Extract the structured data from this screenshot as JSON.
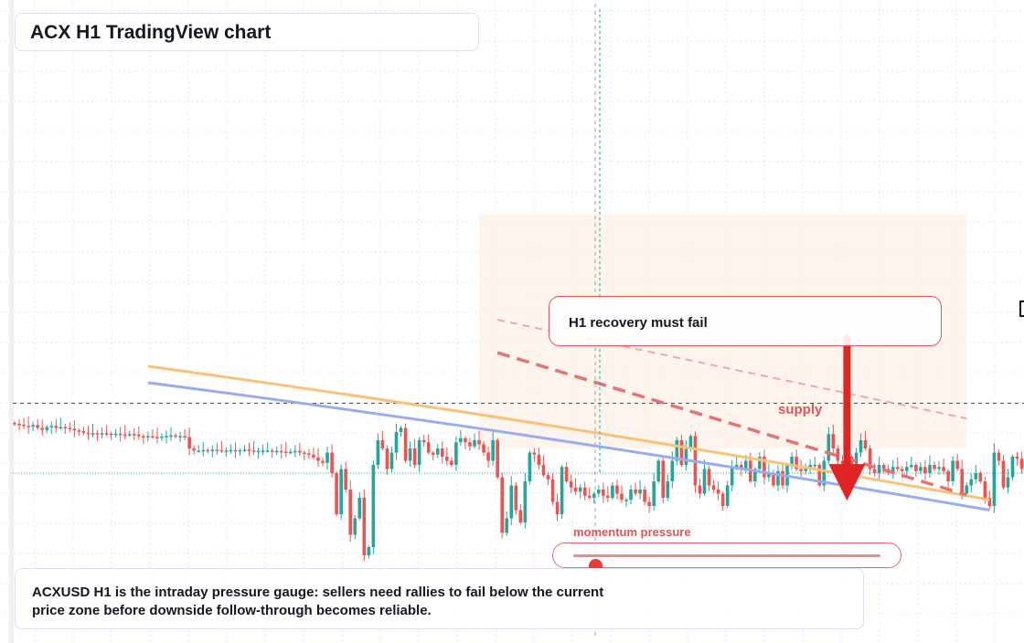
{
  "title": "ACX H1 TradingView chart",
  "callout": "H1 recovery must fail",
  "supply_label": "supply",
  "momentum": {
    "label": "momentum pressure",
    "level": 0.07
  },
  "caption": "ACXUSD H1 is the intraday pressure gauge: sellers need rallies to fail below the current price zone before downside follow-through becomes reliable.",
  "colors": {
    "up": "#26a69a",
    "down": "#ef5350",
    "orange_line": "#f7c37a",
    "blue_line": "#98adf0",
    "dashed_red": "#e57373",
    "dashed_pink": "#f2a7a7",
    "arrow": "#e02424",
    "grid": "#e3e8ef",
    "supply_zone": "#fdf1e8"
  },
  "chart_data": {
    "type": "candlestick",
    "timeframe": "H1",
    "symbol": "ACXUSD",
    "x": "bar index (1h)",
    "y": "price (axis not printed)",
    "reference_lines": {
      "current_price": 0.0,
      "previous_level": 1.7
    },
    "indicators": [
      {
        "type": "moving_average",
        "color": "orange",
        "from_bar": 29,
        "from": 2.6,
        "to_bar": 212,
        "to": -0.65
      },
      {
        "type": "moving_average",
        "color": "blue",
        "from_bar": 29,
        "from": 2.2,
        "to_bar": 212,
        "to": -0.9
      }
    ],
    "channel": [
      {
        "style": "dashed",
        "from_bar": 105,
        "from": 3.73,
        "to_bar": 207,
        "to": 1.33
      },
      {
        "style": "dashed-bold",
        "from_bar": 105,
        "from": 2.93,
        "to_bar": 207,
        "to": -0.53
      }
    ],
    "arrow": {
      "bar": 181,
      "from": 3.27,
      "to": -0.67
    },
    "closes": [
      1.2,
      1.18,
      1.15,
      1.13,
      1.17,
      1.1,
      1.05,
      1.12,
      1.15,
      1.1,
      1.12,
      1.1,
      1.08,
      1.04,
      1.02,
      0.98,
      0.95,
      0.97,
      0.96,
      0.97,
      0.96,
      0.95,
      0.96,
      0.94,
      0.93,
      0.95,
      0.94,
      0.9,
      0.88,
      0.9,
      0.88,
      0.86,
      0.89,
      0.9,
      0.92,
      0.89,
      0.9,
      0.88,
      0.6,
      0.55,
      0.55,
      0.56,
      0.55,
      0.57,
      0.56,
      0.54,
      0.55,
      0.56,
      0.53,
      0.56,
      0.57,
      0.55,
      0.52,
      0.54,
      0.55,
      0.55,
      0.52,
      0.54,
      0.52,
      0.5,
      0.52,
      0.54,
      0.5,
      0.48,
      0.45,
      0.38,
      0.3,
      0.25,
      0.5,
      0.0,
      -1.0,
      0.1,
      -0.4,
      -1.5,
      -1.1,
      -0.6,
      -2.0,
      -1.8,
      0.2,
      0.8,
      0.6,
      0.1,
      0.5,
      1.0,
      1.1,
      0.3,
      0.6,
      0.2,
      0.8,
      0.75,
      0.5,
      0.45,
      0.6,
      0.4,
      0.3,
      0.2,
      0.75,
      0.85,
      0.75,
      0.65,
      0.8,
      0.7,
      0.5,
      0.3,
      0.8,
      -0.1,
      -1.45,
      -1.1,
      -0.3,
      -0.9,
      -1.2,
      -0.2,
      0.5,
      0.45,
      0.2,
      -0.05,
      -0.15,
      -0.7,
      -1.0,
      0.15,
      -0.2,
      -0.35,
      -0.45,
      -0.35,
      -0.55,
      -0.6,
      -0.5,
      -0.4,
      -0.55,
      -0.6,
      -0.3,
      -0.5,
      -0.65,
      -0.65,
      -0.4,
      -0.5,
      -0.4,
      -0.7,
      -0.8,
      -0.2,
      0.3,
      -0.6,
      -0.2,
      0.3,
      0.8,
      0.2,
      0.6,
      0.9,
      -0.3,
      -0.5,
      0.1,
      -0.3,
      -0.4,
      -0.5,
      -0.8,
      -0.3,
      0.15,
      0.2,
      0.1,
      0.3,
      -0.2,
      0.1,
      0.4,
      -0.1,
      0.0,
      -0.3,
      0.05,
      -0.3,
      0.2,
      0.4,
      0.1,
      0.05,
      0.15,
      0.2,
      0.2,
      -0.3,
      0.3,
      0.95,
      0.6,
      0.3,
      0.0,
      0.4,
      0.1,
      0.5,
      0.8,
      0.6,
      0.1,
      0.0,
      0.2,
      0.1,
      0.0,
      0.15,
      0.1,
      0.05,
      0.15,
      0.2,
      0.05,
      0.15,
      0.0,
      0.2,
      0.1,
      0.15,
      0.05,
      -0.2,
      0.3,
      0.1,
      -0.5,
      -0.3,
      -0.15,
      0.0,
      -0.2,
      -0.6,
      -0.8,
      0.5,
      0.3,
      -0.35,
      -0.1,
      0.4,
      0.35,
      0.1,
      -0.05,
      0.1,
      0.25,
      0.4,
      0.1,
      0.2,
      0.35,
      0.6,
      0.2,
      0.05,
      0.3,
      0.1,
      0.0,
      -0.2,
      -0.4,
      -0.4,
      -0.05
    ]
  }
}
